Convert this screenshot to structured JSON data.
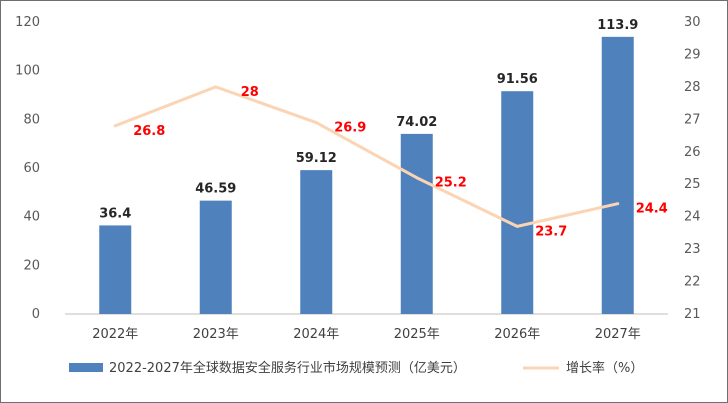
{
  "chart_data": {
    "type": "bar",
    "categories": [
      "2022年",
      "2023年",
      "2024年",
      "2025年",
      "2026年",
      "2027年"
    ],
    "series": [
      {
        "name": "2022-2027年全球数据安全服务行业市场规模预测（亿美元）",
        "type": "bar",
        "axis": "left",
        "values": [
          36.4,
          46.59,
          59.12,
          74.02,
          91.56,
          113.9
        ],
        "labels": [
          "36.4",
          "46.59",
          "59.12",
          "74.02",
          "91.56",
          "113.9"
        ]
      },
      {
        "name": "增长率（%）",
        "type": "line",
        "axis": "right",
        "values": [
          26.8,
          28,
          26.9,
          25.2,
          23.7,
          24.4
        ],
        "labels": [
          "26.8",
          "28",
          "26.9",
          "25.2",
          "23.7",
          "24.4"
        ]
      }
    ],
    "y_left": {
      "min": 0,
      "max": 120,
      "ticks": [
        "0",
        "20",
        "40",
        "60",
        "80",
        "100",
        "120"
      ]
    },
    "y_right": {
      "min": 21,
      "max": 30,
      "ticks": [
        "21",
        "22",
        "23",
        "24",
        "25",
        "26",
        "27",
        "28",
        "29",
        "30"
      ]
    },
    "legend_position": "bottom",
    "grid": false
  },
  "colors": {
    "bar": "#4f81bd",
    "line": "#fbd4b4",
    "rate_label": "#ff0000",
    "bar_label": "#262626",
    "axis": "#bfbfbf"
  }
}
